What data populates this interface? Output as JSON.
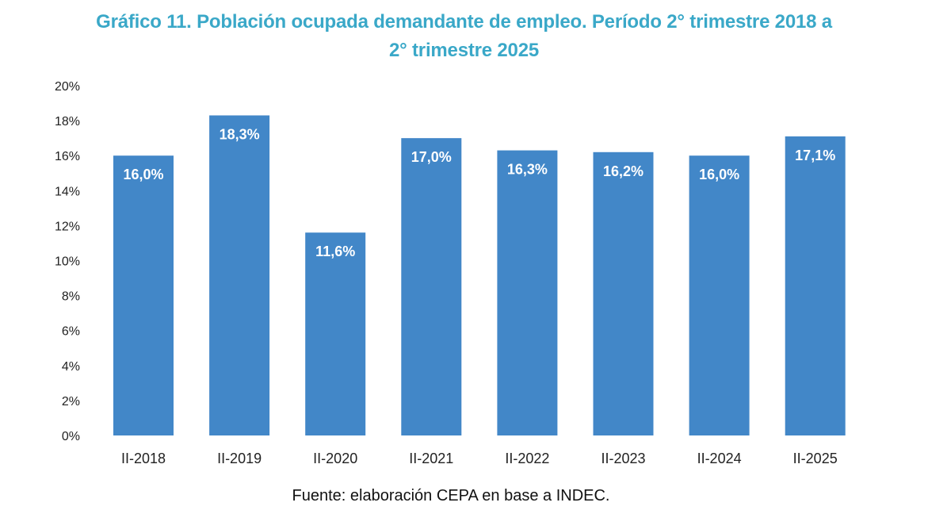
{
  "chart_data": {
    "type": "bar",
    "title_line1": "Gráfico 11. Población ocupada demandante de empleo. Período 2° trimestre 2018 a",
    "title_line2": "2° trimestre 2025",
    "title": "Gráfico 11. Población ocupada demandante de empleo. Período 2° trimestre 2018 a 2° trimestre 2025",
    "xlabel": "",
    "ylabel": "",
    "categories": [
      "II-2018",
      "II-2019",
      "II-2020",
      "II-2021",
      "II-2022",
      "II-2023",
      "II-2024",
      "II-2025"
    ],
    "values": [
      16.0,
      18.3,
      11.6,
      17.0,
      16.3,
      16.2,
      16.0,
      17.1
    ],
    "data_labels": [
      "16,0%",
      "18,3%",
      "11,6%",
      "17,0%",
      "16,3%",
      "16,2%",
      "16,0%",
      "17,1%"
    ],
    "ylim": [
      0,
      20
    ],
    "yticks": [
      0,
      2,
      4,
      6,
      8,
      10,
      12,
      14,
      16,
      18,
      20
    ],
    "ytick_labels": [
      "0%",
      "2%",
      "4%",
      "6%",
      "8%",
      "10%",
      "12%",
      "14%",
      "16%",
      "18%",
      "20%"
    ],
    "grid": false,
    "legend": "none",
    "bar_color": "#4287c8",
    "title_color": "#3aa8c8",
    "source": "Fuente: elaboración CEPA en base a INDEC."
  }
}
